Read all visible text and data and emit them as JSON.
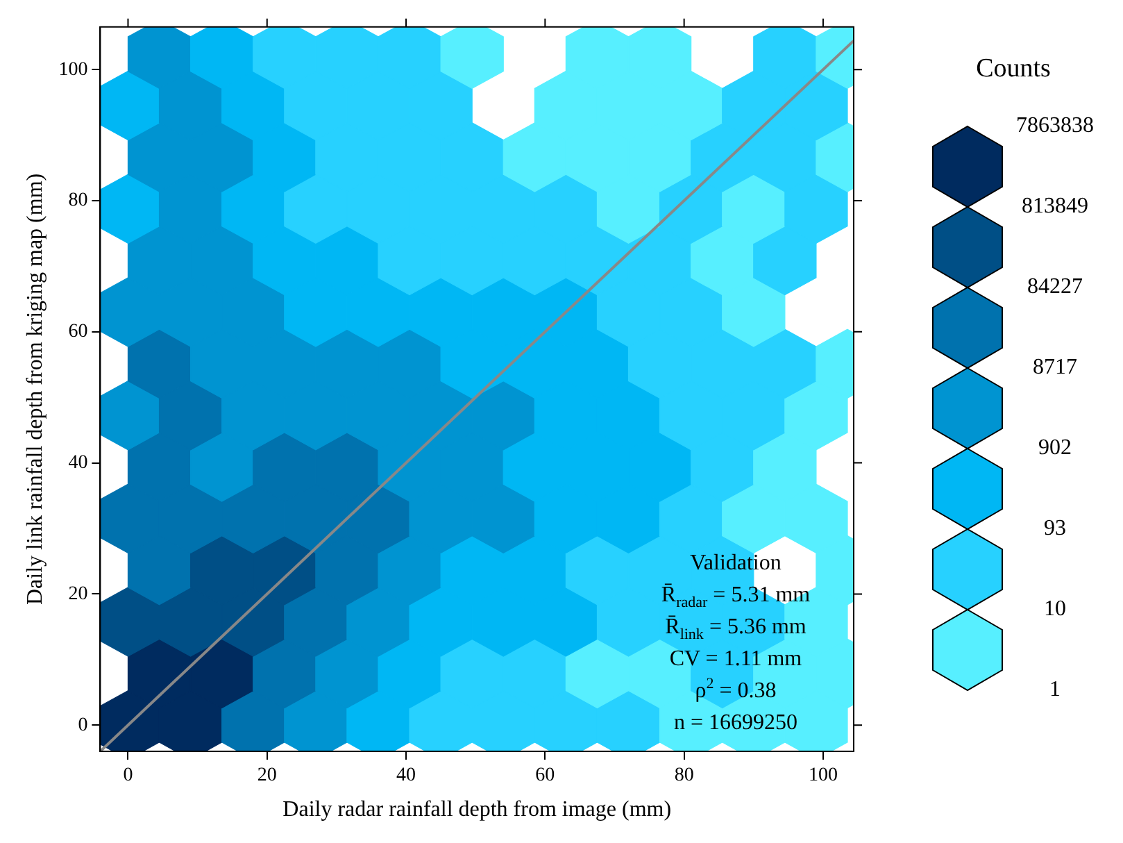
{
  "chart_data": {
    "type": "scatter",
    "xlabel": "Daily radar rainfall depth from image (mm)",
    "ylabel": "Daily link rainfall depth from kriging map (mm)",
    "xlim": [
      -4,
      104.4
    ],
    "ylim": [
      -4,
      106.5
    ],
    "xticks": [
      0,
      20,
      40,
      60,
      80,
      100
    ],
    "yticks": [
      0,
      20,
      40,
      60,
      80,
      100
    ],
    "clabel": "Counts",
    "colors": [
      "#57efff",
      "#27d1ff",
      "#00b7f4",
      "#0094d1",
      "#0072ae",
      "#004f86",
      "#002b5f"
    ],
    "annotations": [
      "Validation",
      "R̄$_{radar}$ = 5.31 mm",
      "R̄$_{link}$ = 5.36 mm",
      "CV = 1.11 mm",
      "ρ$^{2}$ = 0.38",
      "n = 16699250",
      "1",
      "10",
      "93",
      "902",
      "8717",
      "84227",
      "813849",
      "7863838"
    ],
    "series": [
      {
        "x": [
          0,
          9,
          18,
          27,
          36,
          45,
          54,
          63,
          72,
          81,
          90,
          99,
          4.5,
          13.5,
          22.5,
          31.5,
          40.5,
          49.5,
          58.5,
          67.5,
          76.5,
          85.5,
          94.5,
          103.5,
          0,
          9,
          18,
          27,
          36,
          45,
          54,
          63,
          72,
          81,
          90,
          99,
          4.5,
          13.5,
          22.5,
          31.5,
          40.5,
          49.5,
          58.5,
          67.5,
          76.5,
          85.5,
          103.5,
          0,
          9,
          18,
          27,
          36,
          45,
          54,
          63,
          72,
          81,
          90,
          99,
          4.5,
          13.5,
          22.5,
          31.5,
          40.5,
          49.5,
          58.5,
          67.5,
          76.5,
          85.5,
          94.5,
          0,
          9,
          18,
          27,
          36,
          45,
          54,
          63,
          72,
          81,
          90,
          99,
          4.5,
          13.5,
          22.5,
          31.5,
          40.5,
          49.5,
          58.5,
          67.5,
          76.5,
          85.5,
          94.5,
          103.5,
          0,
          9,
          18,
          27,
          36,
          45,
          54,
          63,
          72,
          81,
          90,
          4.5,
          13.5,
          22.5,
          31.5,
          40.5,
          49.5,
          58.5,
          67.5,
          76.5,
          85.5,
          94.5,
          0,
          9,
          18,
          27,
          36,
          45,
          54,
          63,
          72,
          81,
          90,
          99,
          4.5,
          13.5,
          22.5,
          31.5,
          40.5,
          49.5,
          58.5,
          67.5,
          76.5,
          85.5,
          94.5,
          103.5,
          0,
          9,
          18,
          27,
          36,
          45,
          63,
          72,
          81,
          90,
          99,
          4.5,
          13.5,
          22.5,
          31.5,
          40.5,
          49.5,
          67.5,
          76.5,
          94.5,
          103.5
        ],
        "values": [
          0,
          0,
          0,
          0,
          0,
          0,
          0,
          0,
          0,
          0,
          0,
          0,
          7.875,
          7.875,
          7.875,
          7.875,
          7.875,
          7.875,
          7.875,
          7.875,
          7.875,
          7.875,
          7.875,
          7.875,
          15.75,
          15.75,
          15.75,
          15.75,
          15.75,
          15.75,
          15.75,
          15.75,
          15.75,
          15.75,
          15.75,
          15.75,
          23.625,
          23.625,
          23.625,
          23.625,
          23.625,
          23.625,
          23.625,
          23.625,
          23.625,
          23.625,
          23.625,
          31.5,
          31.5,
          31.5,
          31.5,
          31.5,
          31.5,
          31.5,
          31.5,
          31.5,
          31.5,
          31.5,
          31.5,
          39.375,
          39.375,
          39.375,
          39.375,
          39.375,
          39.375,
          39.375,
          39.375,
          39.375,
          39.375,
          39.375,
          47.25,
          47.25,
          47.25,
          47.25,
          47.25,
          47.25,
          47.25,
          47.25,
          47.25,
          47.25,
          47.25,
          47.25,
          55.125,
          55.125,
          55.125,
          55.125,
          55.125,
          55.125,
          55.125,
          55.125,
          55.125,
          55.125,
          55.125,
          55.125,
          63,
          63,
          63,
          63,
          63,
          63,
          63,
          63,
          63,
          63,
          63,
          70.875,
          70.875,
          70.875,
          70.875,
          70.875,
          70.875,
          70.875,
          70.875,
          70.875,
          70.875,
          70.875,
          78.75,
          78.75,
          78.75,
          78.75,
          78.75,
          78.75,
          78.75,
          78.75,
          78.75,
          78.75,
          78.75,
          78.75,
          86.625,
          86.625,
          86.625,
          86.625,
          86.625,
          86.625,
          86.625,
          86.625,
          86.625,
          86.625,
          86.625,
          86.625,
          94.5,
          94.5,
          94.5,
          94.5,
          94.5,
          94.5,
          94.5,
          94.5,
          94.5,
          94.5,
          94.5,
          102.375,
          102.375,
          102.375,
          102.375,
          102.375,
          102.375,
          102.375,
          102.375,
          102.375,
          102.375
        ],
        "colors": [
          "#002b5f",
          "#002b5f",
          "#0072ae",
          "#0094d1",
          "#00b7f4",
          "#27d1ff",
          "#27d1ff",
          "#27d1ff",
          "#27d1ff",
          "#57efff",
          "#57efff",
          "#57efff",
          "#002b5f",
          "#002b5f",
          "#0072ae",
          "#0094d1",
          "#00b7f4",
          "#27d1ff",
          "#27d1ff",
          "#57efff",
          "#57efff",
          "#27d1ff",
          "#57efff",
          "#57efff",
          "#004f86",
          "#004f86",
          "#004f86",
          "#0072ae",
          "#0094d1",
          "#00b7f4",
          "#00b7f4",
          "#00b7f4",
          "#27d1ff",
          "#27d1ff",
          "#27d1ff",
          "#57efff",
          "#0072ae",
          "#004f86",
          "#004f86",
          "#0072ae",
          "#0094d1",
          "#00b7f4",
          "#00b7f4",
          "#27d1ff",
          "#27d1ff",
          "#27d1ff",
          "#57efff",
          "#0072ae",
          "#0072ae",
          "#0072ae",
          "#0072ae",
          "#0072ae",
          "#0094d1",
          "#0094d1",
          "#00b7f4",
          "#00b7f4",
          "#27d1ff",
          "#57efff",
          "#57efff",
          "#0072ae",
          "#0094d1",
          "#0072ae",
          "#0072ae",
          "#0094d1",
          "#0094d1",
          "#00b7f4",
          "#00b7f4",
          "#00b7f4",
          "#27d1ff",
          "#57efff",
          "#0094d1",
          "#0072ae",
          "#0094d1",
          "#0094d1",
          "#0094d1",
          "#0094d1",
          "#0094d1",
          "#00b7f4",
          "#00b7f4",
          "#27d1ff",
          "#27d1ff",
          "#57efff",
          "#0072ae",
          "#0094d1",
          "#0094d1",
          "#0094d1",
          "#0094d1",
          "#00b7f4",
          "#00b7f4",
          "#00b7f4",
          "#27d1ff",
          "#27d1ff",
          "#27d1ff",
          "#57efff",
          "#0094d1",
          "#0094d1",
          "#0094d1",
          "#00b7f4",
          "#00b7f4",
          "#00b7f4",
          "#00b7f4",
          "#00b7f4",
          "#27d1ff",
          "#27d1ff",
          "#57efff",
          "#0094d1",
          "#0094d1",
          "#00b7f4",
          "#00b7f4",
          "#27d1ff",
          "#27d1ff",
          "#27d1ff",
          "#27d1ff",
          "#27d1ff",
          "#57efff",
          "#27d1ff",
          "#00b7f4",
          "#0094d1",
          "#00b7f4",
          "#27d1ff",
          "#27d1ff",
          "#27d1ff",
          "#27d1ff",
          "#27d1ff",
          "#57efff",
          "#27d1ff",
          "#57efff",
          "#27d1ff",
          "#0094d1",
          "#0094d1",
          "#00b7f4",
          "#27d1ff",
          "#27d1ff",
          "#27d1ff",
          "#57efff",
          "#57efff",
          "#57efff",
          "#27d1ff",
          "#27d1ff",
          "#57efff",
          "#00b7f4",
          "#0094d1",
          "#00b7f4",
          "#27d1ff",
          "#27d1ff",
          "#27d1ff",
          "#57efff",
          "#57efff",
          "#57efff",
          "#27d1ff",
          "#27d1ff",
          "#0094d1",
          "#00b7f4",
          "#27d1ff",
          "#27d1ff",
          "#27d1ff",
          "#57efff",
          "#57efff",
          "#57efff",
          "#27d1ff",
          "#57efff"
        ]
      },
      {
        "type": "line",
        "color": "#888888",
        "x": [
          -4,
          104.4
        ],
        "values": [
          -4,
          104.4
        ]
      }
    ]
  }
}
